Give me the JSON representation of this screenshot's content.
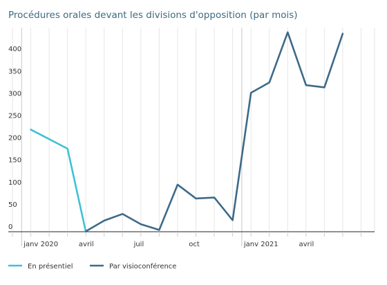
{
  "chart_data": {
    "type": "line",
    "title": "Procédures orales devant les divisions d'opposition (par mois)",
    "xlabel": "",
    "ylabel": "",
    "ylim": [
      0,
      450
    ],
    "y_ticks": [
      0,
      50,
      100,
      150,
      200,
      250,
      300,
      350,
      400
    ],
    "months": [
      "2019-12",
      "2020-01",
      "2020-02",
      "2020-03",
      "2020-04",
      "2020-05",
      "2020-06",
      "2020-07",
      "2020-08",
      "2020-09",
      "2020-10",
      "2020-11",
      "2020-12",
      "2021-01",
      "2021-02",
      "2021-03",
      "2021-04",
      "2021-05",
      "2021-06",
      "2021-07"
    ],
    "x_tick_labels": [
      {
        "month": "2020-01",
        "label": "janv 2020"
      },
      {
        "month": "2020-04",
        "label": "avril"
      },
      {
        "month": "2020-07",
        "label": "juil"
      },
      {
        "month": "2020-10",
        "label": "oct"
      },
      {
        "month": "2021-01",
        "label": "janv 2021"
      },
      {
        "month": "2021-04",
        "label": "avril"
      }
    ],
    "year_separators": [
      "2020-01",
      "2021-01"
    ],
    "grid": {
      "vertical": true,
      "horizontal": false
    },
    "legend_position": "bottom",
    "series": [
      {
        "name": "En présentiel",
        "color": "#3ec1d3",
        "points": [
          {
            "x": "2020-01",
            "y": 230
          },
          {
            "x": "2020-03",
            "y": 187
          },
          {
            "x": "2020-04",
            "y": 0
          }
        ]
      },
      {
        "name": "Par visioconférence",
        "color": "#3d6a88",
        "points": [
          {
            "x": "2020-04",
            "y": 1
          },
          {
            "x": "2020-05",
            "y": 25
          },
          {
            "x": "2020-06",
            "y": 40
          },
          {
            "x": "2020-07",
            "y": 17
          },
          {
            "x": "2020-08",
            "y": 4
          },
          {
            "x": "2020-09",
            "y": 106
          },
          {
            "x": "2020-10",
            "y": 75
          },
          {
            "x": "2020-11",
            "y": 77
          },
          {
            "x": "2020-12",
            "y": 26
          },
          {
            "x": "2021-01",
            "y": 313
          },
          {
            "x": "2021-02",
            "y": 336
          },
          {
            "x": "2021-03",
            "y": 449
          },
          {
            "x": "2021-04",
            "y": 330
          },
          {
            "x": "2021-05",
            "y": 325
          },
          {
            "x": "2021-06",
            "y": 446
          }
        ]
      }
    ]
  }
}
